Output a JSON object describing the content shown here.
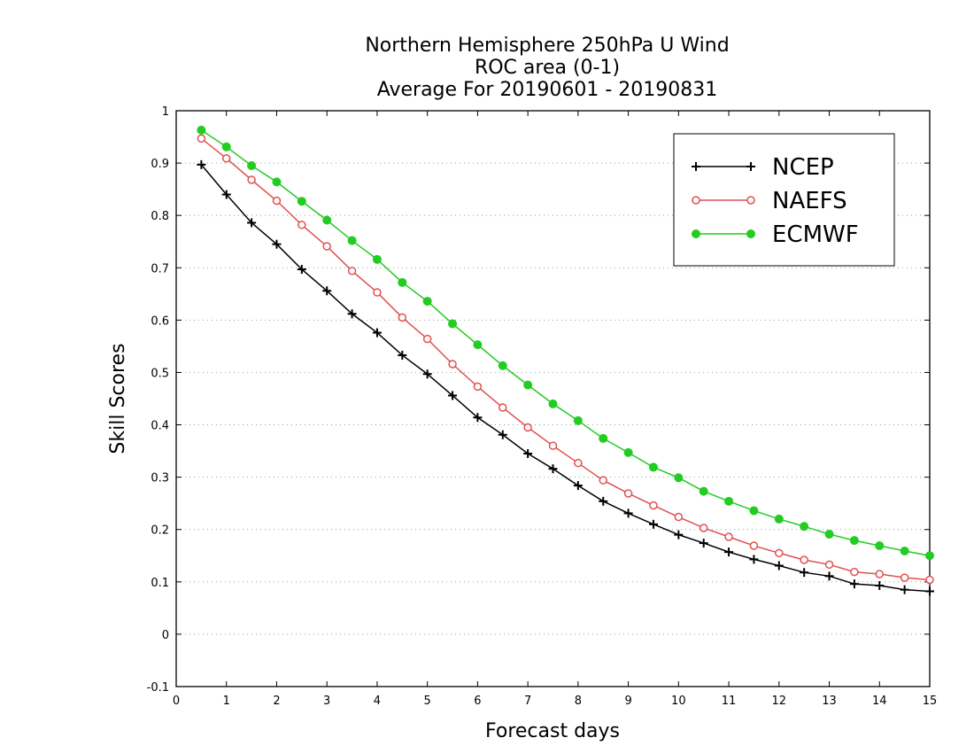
{
  "chart_data": {
    "type": "line",
    "title": [
      "Northern Hemisphere 250hPa U Wind",
      "ROC area (0-1)",
      "Average For 20190601 - 20190831"
    ],
    "xlabel": "Forecast days",
    "ylabel": "Skill Scores",
    "xlim": [
      0,
      15
    ],
    "ylim": [
      -0.1,
      1
    ],
    "xticks": [
      0,
      1,
      2,
      3,
      4,
      5,
      6,
      7,
      8,
      9,
      10,
      11,
      12,
      13,
      14,
      15
    ],
    "yticks": [
      -0.1,
      0,
      0.1,
      0.2,
      0.3,
      0.4,
      0.5,
      0.6,
      0.7,
      0.8,
      0.9,
      1
    ],
    "ytick_labels": [
      "-0.1",
      "0",
      "0.1",
      "0.2",
      "0.3",
      "0.4",
      "0.5",
      "0.6",
      "0.7",
      "0.8",
      "0.9",
      "1"
    ],
    "grid": true,
    "legend_position": "top-right",
    "x": [
      0.5,
      1,
      1.5,
      2,
      2.5,
      3,
      3.5,
      4,
      4.5,
      5,
      5.5,
      6,
      6.5,
      7,
      7.5,
      8,
      8.5,
      9,
      9.5,
      10,
      10.5,
      11,
      11.5,
      12,
      12.5,
      13,
      13.5,
      14,
      14.5,
      15
    ],
    "series": [
      {
        "name": "NCEP",
        "color": "#000000",
        "marker": "plus",
        "values": [
          0.897,
          0.84,
          0.786,
          0.745,
          0.697,
          0.656,
          0.612,
          0.576,
          0.533,
          0.497,
          0.456,
          0.414,
          0.381,
          0.345,
          0.316,
          0.284,
          0.254,
          0.231,
          0.21,
          0.19,
          0.174,
          0.157,
          0.143,
          0.131,
          0.118,
          0.111,
          0.096,
          0.093,
          0.085,
          0.082
        ]
      },
      {
        "name": "NAEFS",
        "color": "#e05050",
        "marker": "open-circle",
        "values": [
          0.947,
          0.909,
          0.868,
          0.828,
          0.782,
          0.741,
          0.694,
          0.653,
          0.605,
          0.564,
          0.516,
          0.473,
          0.433,
          0.395,
          0.36,
          0.327,
          0.294,
          0.269,
          0.246,
          0.224,
          0.203,
          0.186,
          0.169,
          0.155,
          0.142,
          0.133,
          0.119,
          0.115,
          0.108,
          0.104
        ]
      },
      {
        "name": "ECMWF",
        "color": "#22cc22",
        "marker": "filled-circle",
        "values": [
          0.963,
          0.931,
          0.895,
          0.864,
          0.827,
          0.791,
          0.752,
          0.716,
          0.672,
          0.636,
          0.593,
          0.553,
          0.513,
          0.476,
          0.44,
          0.408,
          0.374,
          0.347,
          0.319,
          0.299,
          0.273,
          0.254,
          0.236,
          0.22,
          0.206,
          0.191,
          0.179,
          0.169,
          0.159,
          0.15
        ]
      }
    ]
  }
}
